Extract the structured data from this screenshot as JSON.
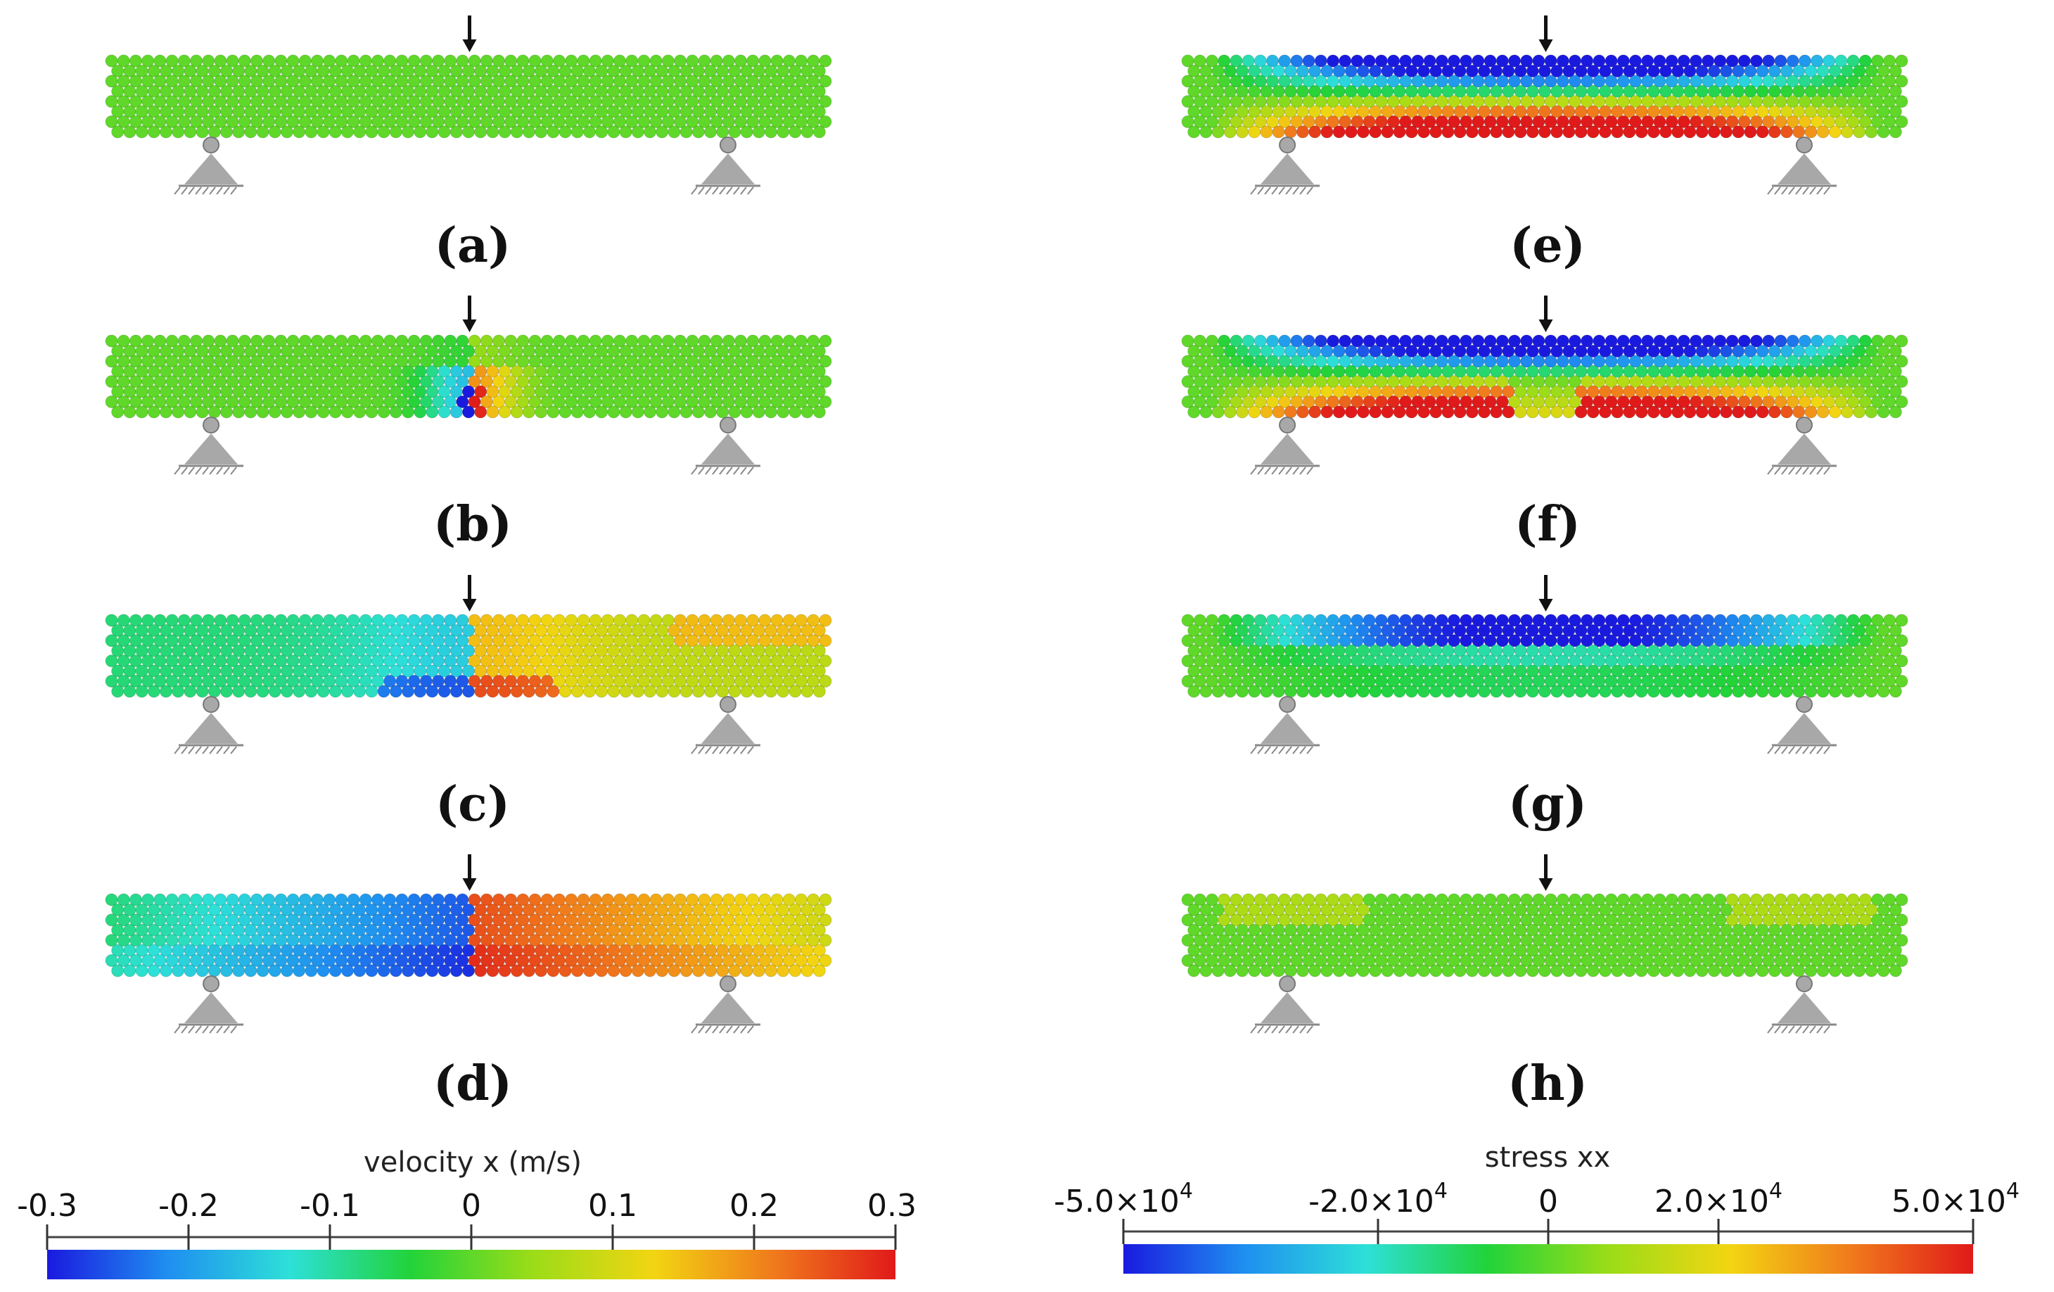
{
  "panels": [
    {
      "id": "a",
      "label_text": "(a)",
      "field": "velocity",
      "state": "uniform"
    },
    {
      "id": "b",
      "label_text": "(b)",
      "field": "velocity",
      "state": "crack_start"
    },
    {
      "id": "c",
      "label_text": "(c)",
      "field": "velocity",
      "state": "half_split"
    },
    {
      "id": "d",
      "label_text": "(d)",
      "field": "velocity",
      "state": "full_split"
    },
    {
      "id": "e",
      "label_text": "(e)",
      "field": "stress",
      "state": "bending"
    },
    {
      "id": "f",
      "label_text": "(f)",
      "field": "stress",
      "state": "bending_crack"
    },
    {
      "id": "g",
      "label_text": "(g)",
      "field": "stress",
      "state": "partial_release"
    },
    {
      "id": "h",
      "label_text": "(h)",
      "field": "stress",
      "state": "released"
    }
  ],
  "colorbars": {
    "velocity": {
      "title": "velocity x (m/s)",
      "ticks": [
        "-0.3",
        "-0.2",
        "-0.1",
        "0",
        "0.1",
        "0.2",
        "0.3"
      ],
      "values": [
        -0.3,
        -0.2,
        -0.1,
        0,
        0.1,
        0.2,
        0.3
      ],
      "range": [
        -0.3,
        0.3
      ]
    },
    "stress": {
      "title": "stress xx",
      "ticks": [
        {
          "mantissa": "-5.0×10",
          "exp": "4"
        },
        {
          "mantissa": "-2.0×10",
          "exp": "4"
        },
        {
          "mantissa": "0",
          "exp": ""
        },
        {
          "mantissa": "2.0×10",
          "exp": "4"
        },
        {
          "mantissa": "5.0×10",
          "exp": "4"
        }
      ],
      "values": [
        -50000,
        -20000,
        0,
        20000,
        50000
      ],
      "range": [
        -50000,
        50000
      ]
    }
  },
  "colors": {
    "colormap": [
      "#1a1adf",
      "#1f8ff0",
      "#2de0d8",
      "#22d33a",
      "#9bdc18",
      "#f2d512",
      "#f07a1c",
      "#e01a1a"
    ],
    "support": "#a8a8a8",
    "arrow": "#111111"
  }
}
